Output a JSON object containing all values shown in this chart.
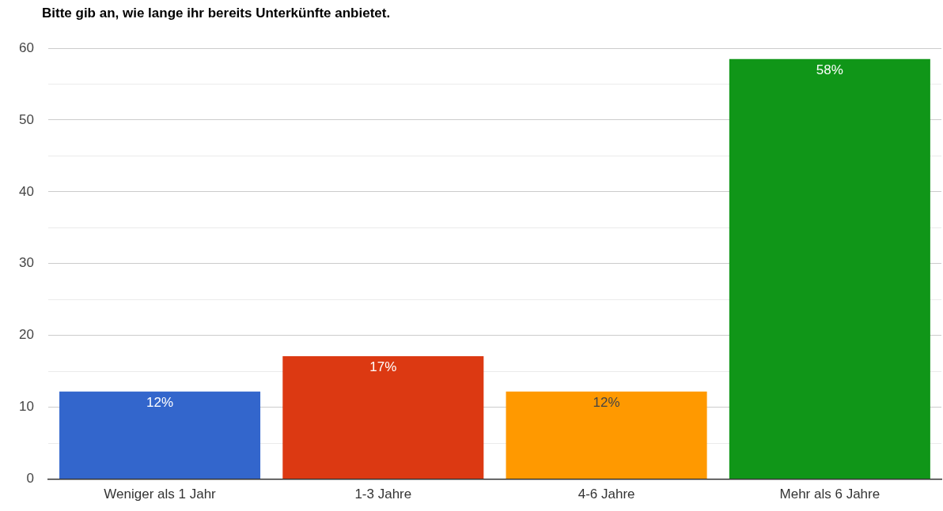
{
  "chart_data": {
    "type": "bar",
    "title": "Bitte gib an, wie lange ihr bereits Unterkünfte anbietet.",
    "categories": [
      "Weniger als 1 Jahr",
      "1-3 Jahre",
      "4-6 Jahre",
      "Mehr als 6 Jahre"
    ],
    "values": [
      12.2,
      17.1,
      12.2,
      58.5
    ],
    "colors": [
      "#3366cc",
      "#dc3912",
      "#ff9900",
      "#109618"
    ],
    "value_labels": [
      "12%",
      "17%",
      "12%",
      "58%"
    ],
    "ylim": [
      0,
      60
    ],
    "yticks": [
      0,
      {
        "value": 5,
        "label": null
      },
      10,
      {
        "value": 15,
        "label": null
      },
      20,
      {
        "value": 25,
        "label": null
      },
      30,
      {
        "value": 35,
        "label": null
      },
      40,
      {
        "value": 45,
        "label": null
      },
      50,
      {
        "value": 55,
        "label": null
      },
      60
    ],
    "grid": "y",
    "legend": false
  }
}
